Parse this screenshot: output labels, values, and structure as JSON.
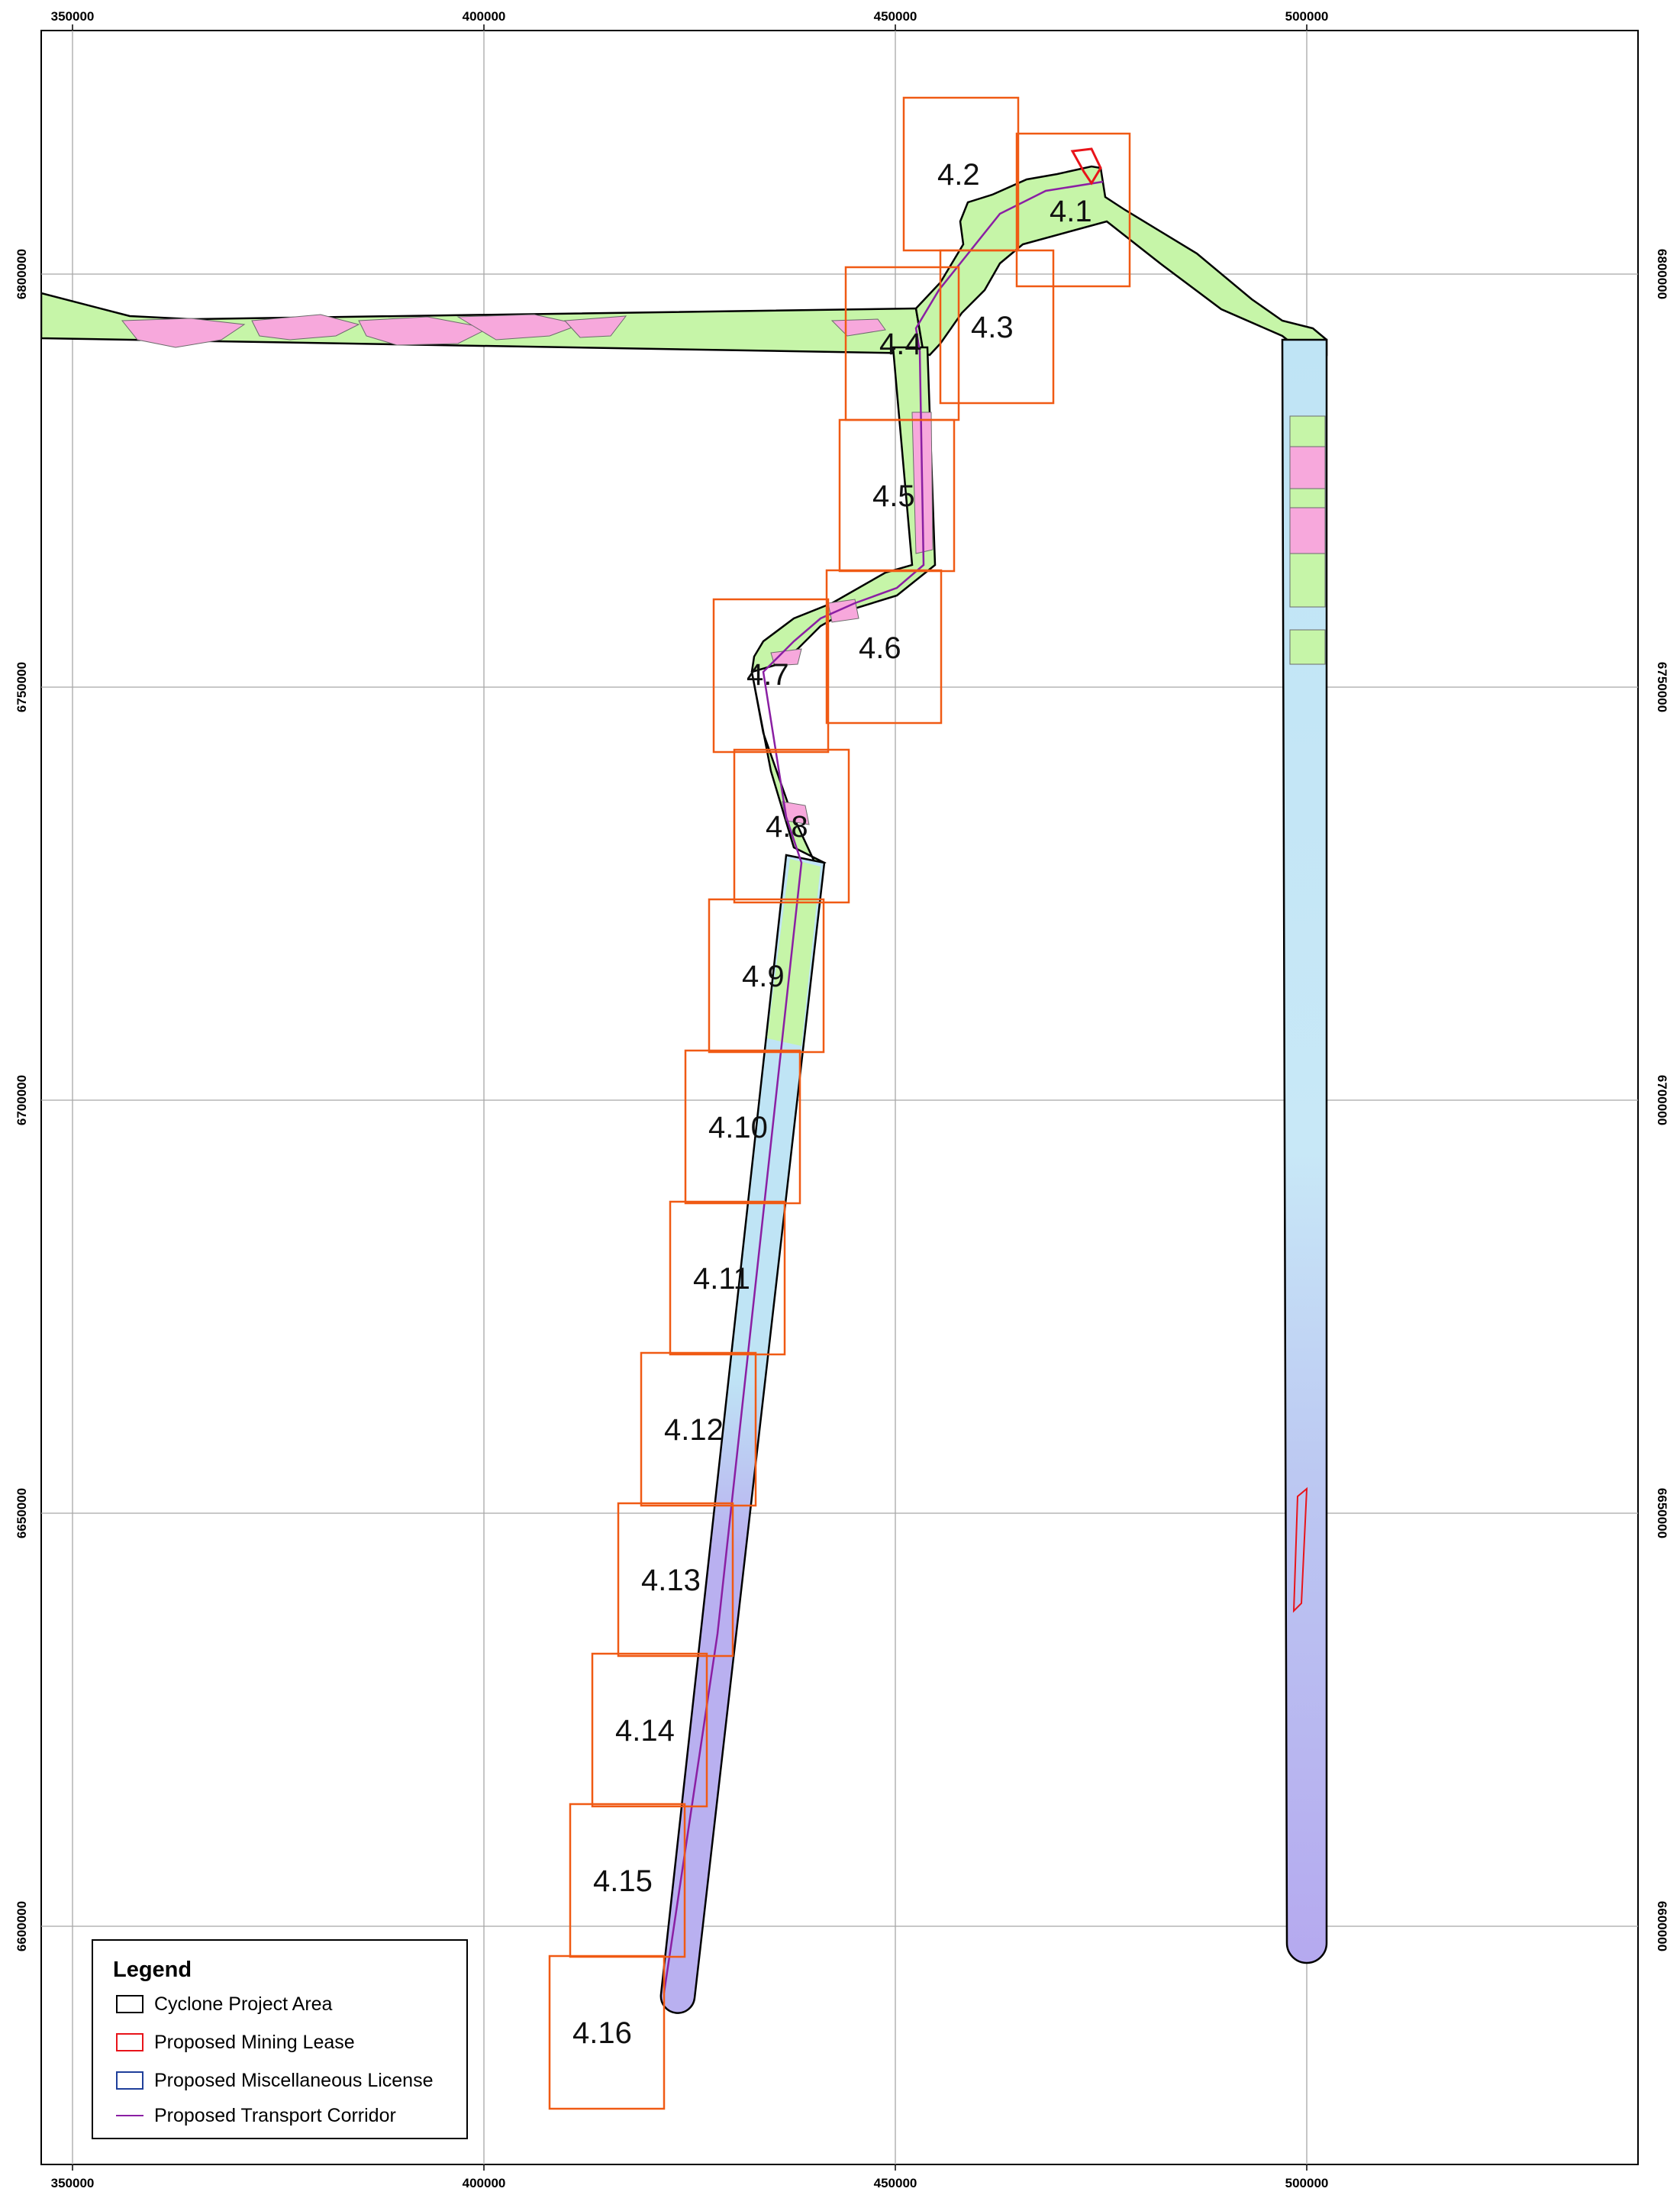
{
  "map": {
    "x_ticks": [
      "350000",
      "400000",
      "450000",
      "500000"
    ],
    "y_ticks": [
      "6800000",
      "6750000",
      "6700000",
      "6650000",
      "6600000"
    ],
    "mapsheet_labels": [
      "4.1",
      "4.2",
      "4.3",
      "4.4",
      "4.5",
      "4.6",
      "4.7",
      "4.8",
      "4.9",
      "4.10",
      "4.11",
      "4.12",
      "4.13",
      "4.14",
      "4.15",
      "4.16"
    ]
  },
  "legend": {
    "title": "Legend",
    "items": [
      {
        "label": "Cyclone Project Area",
        "color": "#000000"
      },
      {
        "label": "Proposed Mining Lease",
        "color": "#e8141a"
      },
      {
        "label": "Proposed Miscellaneous License",
        "color": "#1f3f9a"
      },
      {
        "label": "Proposed Transport Corridor",
        "color": "#8a1fa3"
      }
    ]
  },
  "colors": {
    "green": "#c6f5a8",
    "pink": "#f7a8dc",
    "light_blue": "#bfe4f5",
    "pale_blue": "#d9eef8",
    "lavender": "#b9b0f0",
    "grid": "#a8a8a8",
    "sheet_border": "#f05a14",
    "corridor": "#8a1fa3",
    "mining_lease": "#e8141a"
  }
}
